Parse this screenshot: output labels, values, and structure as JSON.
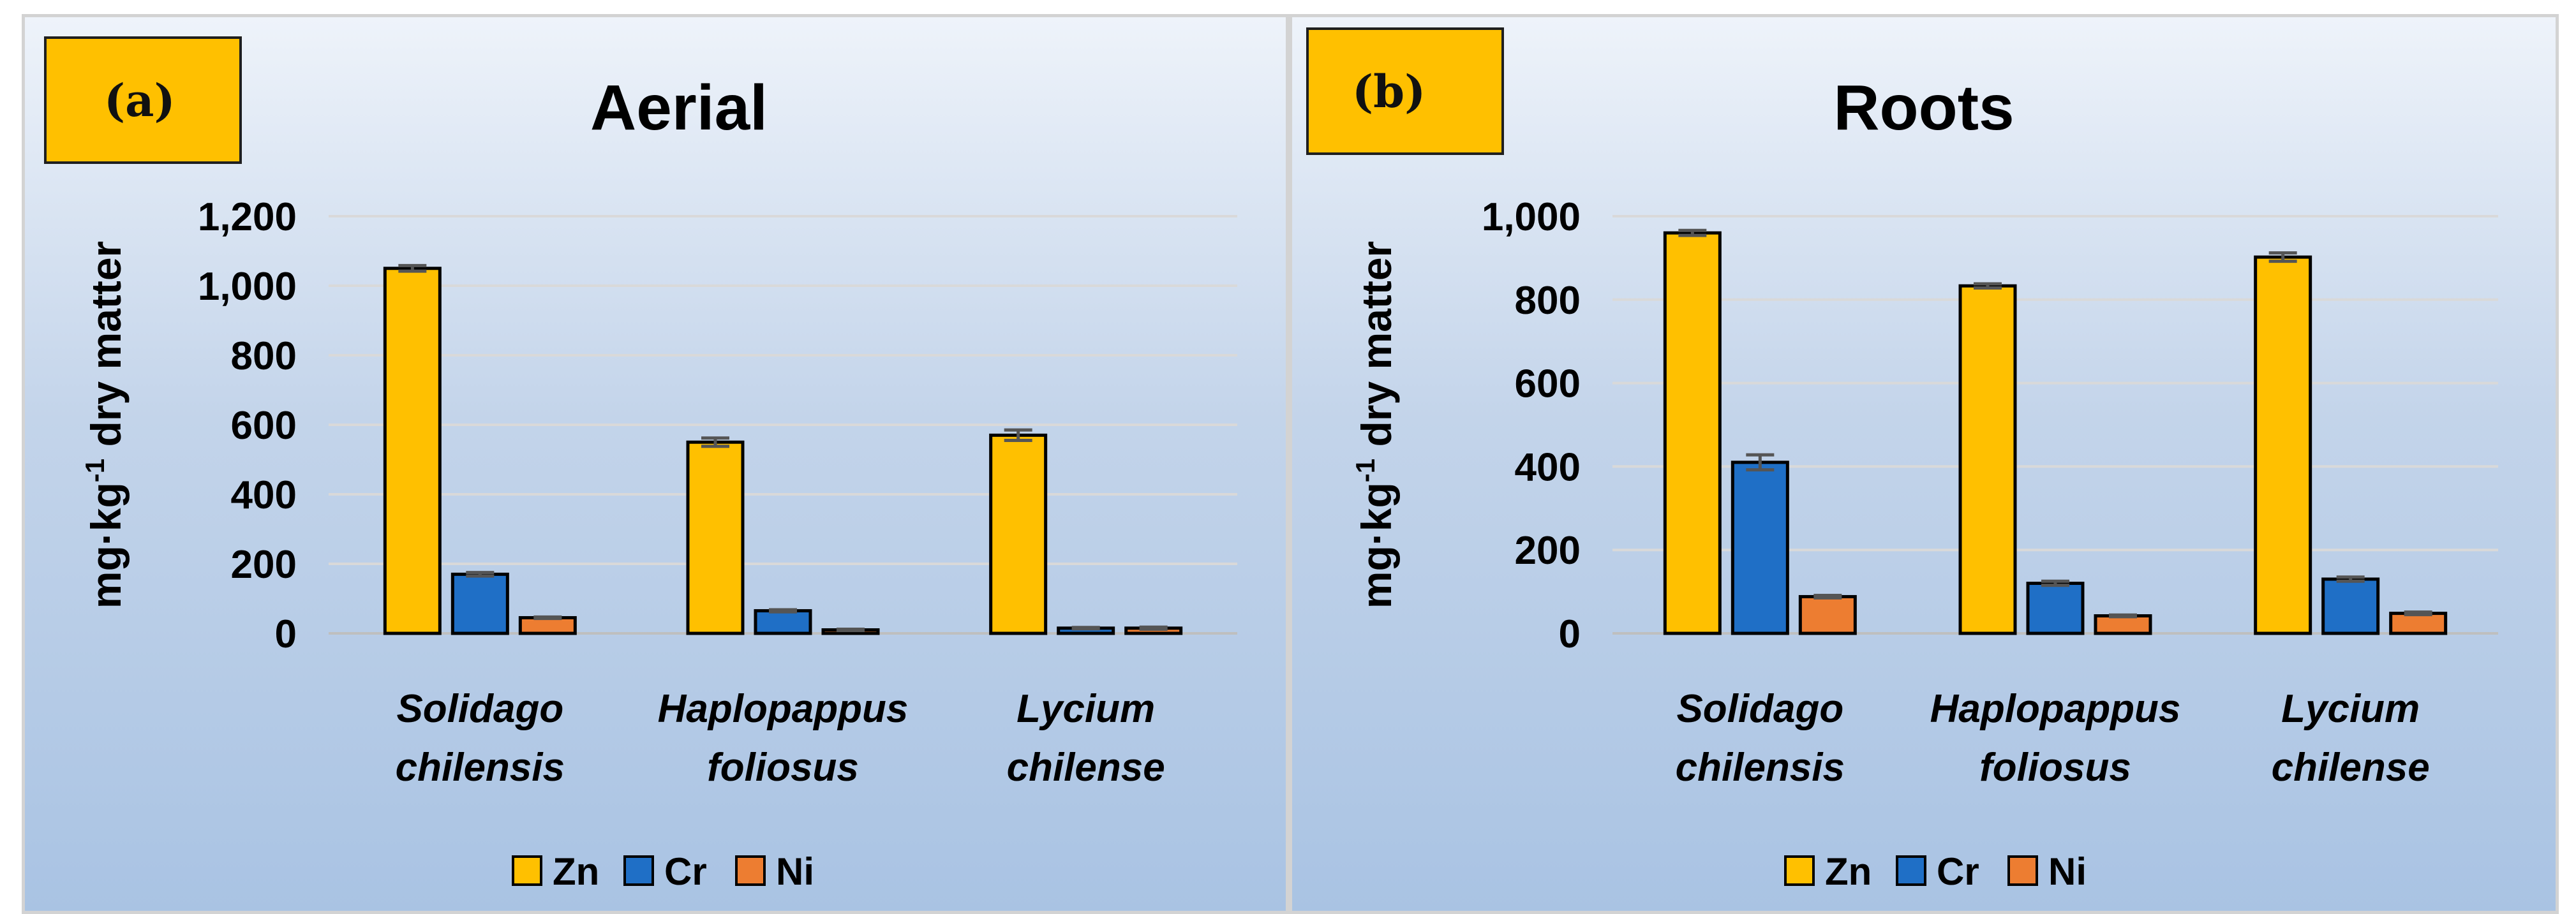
{
  "chart_data": [
    {
      "type": "bar",
      "panel_label": "(a)",
      "title": "Aerial",
      "ylabel": "mg·kg-1 dry matter",
      "ylabel_base": "mg·kg",
      "ylabel_sup": "-1",
      "ylabel_rest": " dry matter",
      "ylim": [
        0,
        1200
      ],
      "yticks": [
        0,
        200,
        400,
        600,
        800,
        1000,
        1200
      ],
      "ytick_labels": [
        "0",
        "200",
        "400",
        "600",
        "800",
        "1,000",
        "1,200"
      ],
      "grid": true,
      "legend_position": "bottom",
      "categories": [
        [
          "Solidago",
          "chilensis"
        ],
        [
          "Haplopappus",
          "foliosus"
        ],
        [
          "Lycium",
          "chilense"
        ]
      ],
      "series": [
        {
          "name": "Zn",
          "color": "#ffc000",
          "values": [
            1050,
            550,
            570
          ],
          "errors": [
            8,
            12,
            15
          ]
        },
        {
          "name": "Cr",
          "color": "#1f6fc6",
          "values": [
            170,
            65,
            15
          ],
          "errors": [
            5,
            3,
            2
          ]
        },
        {
          "name": "Ni",
          "color": "#ed7d31",
          "values": [
            45,
            10,
            15
          ],
          "errors": [
            2,
            2,
            3
          ]
        }
      ]
    },
    {
      "type": "bar",
      "panel_label": "(b)",
      "title": "Roots",
      "ylabel": "mg·kg-1 dry matter",
      "ylabel_base": "mg·kg",
      "ylabel_sup": "-1",
      "ylabel_rest": " dry matter",
      "ylim": [
        0,
        1000
      ],
      "yticks": [
        0,
        200,
        400,
        600,
        800,
        1000
      ],
      "ytick_labels": [
        "0",
        "200",
        "400",
        "600",
        "800",
        "1,000"
      ],
      "grid": true,
      "legend_position": "bottom",
      "categories": [
        [
          "Solidago",
          "chilensis"
        ],
        [
          "Haplopappus",
          "foliosus"
        ],
        [
          "Lycium",
          "chilense"
        ]
      ],
      "series": [
        {
          "name": "Zn",
          "color": "#ffc000",
          "values": [
            960,
            833,
            902
          ],
          "errors": [
            6,
            5,
            10
          ]
        },
        {
          "name": "Cr",
          "color": "#1f6fc6",
          "values": [
            410,
            120,
            130
          ],
          "errors": [
            18,
            5,
            5
          ]
        },
        {
          "name": "Ni",
          "color": "#ed7d31",
          "values": [
            88,
            42,
            48
          ],
          "errors": [
            3,
            2,
            3
          ]
        }
      ]
    }
  ]
}
